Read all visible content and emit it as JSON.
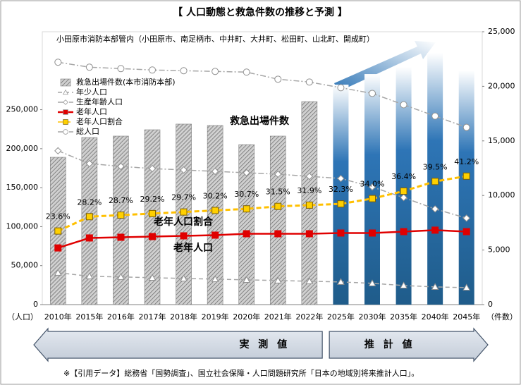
{
  "chart_data": {
    "type": "combo",
    "title": "【 人口動態と救急件数の推移と予測 】",
    "subtitle": "小田原市消防本部管内（小田原市、南足柄市、中井町、大井町、松田町、山北町、開成町）",
    "y_label": "（人口）",
    "y2_label": "（件数）",
    "footnote": "※【引用データ】総務省「国勢調査」、国立社会保障・人口問題研究所「日本の地域別将来推計人口」。",
    "annotations": [
      "救急出場件数",
      "老年人口割合",
      "老年人口"
    ],
    "categories": [
      "2010年",
      "2015年",
      "2016年",
      "2017年",
      "2018年",
      "2019年",
      "2020年",
      "2021年",
      "2022年",
      "2025年",
      "2030年",
      "2035年",
      "2040年",
      "2045年"
    ],
    "periods": [
      {
        "label": "実 測 値",
        "from": "2010年",
        "to": "2022年"
      },
      {
        "label": "推 計 値",
        "from": "2025年",
        "to": "2045年",
        "projection_color": "#2e75b6"
      }
    ],
    "ylim": [
      0,
      350000
    ],
    "yticks": [
      0,
      {
        "value": 50000,
        "label": "50,000"
      },
      {
        "value": 100000,
        "label": "100,000"
      },
      {
        "value": 150000,
        "label": "150,000"
      },
      {
        "value": 200000,
        "label": "200,000"
      },
      {
        "value": 250000,
        "label": "250,000"
      }
    ],
    "y2lim": [
      0,
      25000
    ],
    "y2ticks": [
      0,
      {
        "value": 5000,
        "label": "5,000"
      },
      {
        "value": 10000,
        "label": "10,000"
      },
      {
        "value": 15000,
        "label": "15,000"
      },
      {
        "value": 20000,
        "label": "20,000"
      },
      {
        "value": 25000,
        "label": "25,000"
      }
    ],
    "y3lim": [
      0,
      87.5
    ],
    "series": [
      {
        "name": "救急出場件数(本市消防本部)",
        "kind": "bar",
        "axis": "y2",
        "color": "#a6a6a6",
        "values": [
          13500,
          15310,
          15440,
          16020,
          16540,
          16410,
          14660,
          15440,
          18600,
          20150,
          21120,
          21770,
          23060,
          21450
        ]
      },
      {
        "name": "年少人口",
        "kind": "line",
        "marker": "triangle",
        "dash": "6 4",
        "color": "#9dc3e6",
        "line_color": "#a6a6a6",
        "values": [
          40900,
          36400,
          35500,
          34500,
          33600,
          32700,
          31800,
          30900,
          30000,
          29100,
          27300,
          24500,
          22700,
          21800
        ]
      },
      {
        "name": "生産年齢人口",
        "kind": "line",
        "marker": "diamond",
        "dash": "8 3 2 3",
        "color": "#f4b6b6",
        "line_color": "#a6a6a6",
        "values": [
          197300,
          180900,
          177300,
          174500,
          172700,
          170900,
          169100,
          167300,
          164500,
          161800,
          150900,
          137300,
          122700,
          110900
        ]
      },
      {
        "name": "老年人口",
        "kind": "line",
        "marker": "square",
        "dash": "none",
        "color": "#e00000",
        "line_color": "#e00000",
        "values": [
          72700,
          85500,
          86400,
          87300,
          88200,
          89100,
          90900,
          90900,
          90900,
          91800,
          91800,
          93600,
          95500,
          93600
        ]
      },
      {
        "name": "老年人口割合",
        "kind": "line",
        "axis": "y3",
        "marker": "square",
        "dash": "7 4",
        "color": "#ffd000",
        "line_color": "#ffc000",
        "values": [
          23.6,
          28.2,
          28.7,
          29.2,
          29.7,
          30.2,
          30.7,
          31.5,
          31.9,
          32.3,
          34.0,
          36.4,
          39.5,
          41.2
        ],
        "value_labels": [
          "23.6%",
          "28.2%",
          "28.7%",
          "29.2%",
          "29.7%",
          "30.2%",
          "30.7%",
          "31.5%",
          "31.9%",
          "32.3%",
          "34.0%",
          "36.4%",
          "39.5%",
          "41.2%"
        ]
      },
      {
        "name": "総人口",
        "kind": "line",
        "marker": "circle",
        "dash": "8 3 2 3",
        "color": "#d9d9d9",
        "line_color": "#a6a6a6",
        "values": [
          310900,
          304500,
          302700,
          300900,
          300000,
          299100,
          298200,
          289100,
          285500,
          278200,
          270900,
          256400,
          241800,
          227300
        ]
      }
    ]
  }
}
